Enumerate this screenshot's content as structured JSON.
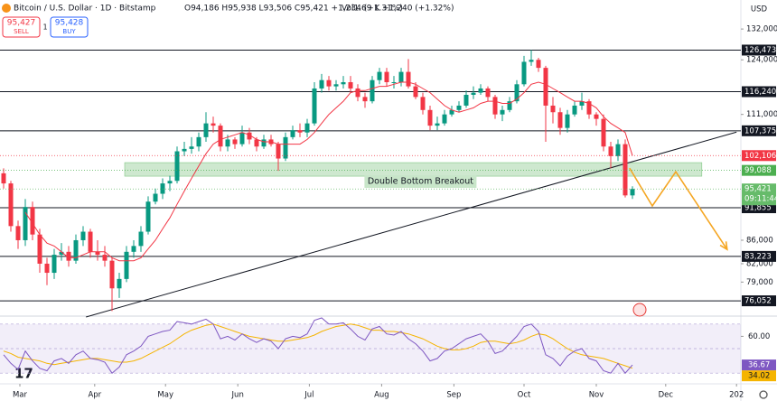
{
  "header": {
    "symbol": "Bitcoin / U.S. Dollar · 1D · Bitstamp",
    "ohlc": "O94,186 H95,938 L93,506 C95,421 +1,234 (+1.31%)",
    "volume": "Vol1.69 K +1,240 (+1.32%)",
    "sell_price": "95,427",
    "sell_label": "SELL",
    "spread": "1",
    "buy_price": "95,428",
    "buy_label": "BUY"
  },
  "chart_data": {
    "type": "candlestick",
    "currency": "USD",
    "log_scale": true,
    "colors": {
      "up": "#089981",
      "down": "#f23645",
      "ma": "#f23645",
      "rsi": "#7e57c2",
      "rsi_ma": "#f5b400",
      "projection": "#f5a623",
      "zone": "#a5d6a7"
    },
    "open": [
      98500,
      96500,
      88500,
      86000,
      92000,
      87000,
      82000,
      80500,
      83500,
      84000,
      82500,
      86000,
      87500,
      84000,
      83500,
      82500,
      78000,
      79500,
      84000,
      85000,
      87500,
      93000,
      94500,
      96500,
      97000,
      103000,
      103500,
      104000,
      106000,
      109000,
      108500,
      104000,
      105500,
      104500,
      107000,
      105500,
      104000,
      105500,
      104500,
      101500,
      106000,
      107500,
      107000,
      109000,
      117000,
      119000,
      117500,
      118000,
      118500,
      117000,
      115000,
      114000,
      119000,
      121000,
      118500,
      118500,
      121000,
      117500,
      115000,
      112000,
      108500,
      109000,
      111000,
      112000,
      113000,
      115500,
      116000,
      117000,
      115000,
      111000,
      112000,
      114000,
      118000,
      123500,
      124000,
      122000,
      113000,
      111500,
      108000,
      111000,
      113000,
      114000,
      111000,
      110000,
      104000,
      102000,
      104500,
      94186
    ],
    "high": [
      99500,
      97000,
      89500,
      93500,
      93000,
      88000,
      83000,
      84500,
      85500,
      85000,
      87000,
      88500,
      88000,
      86000,
      85000,
      83000,
      80500,
      85000,
      86000,
      88500,
      94000,
      95500,
      97500,
      98000,
      104000,
      105000,
      106000,
      107000,
      111500,
      110500,
      109000,
      106500,
      106000,
      108500,
      108000,
      106000,
      106500,
      106500,
      105000,
      107000,
      108500,
      109000,
      110000,
      118500,
      120500,
      120000,
      119000,
      120000,
      120000,
      118000,
      116000,
      120000,
      122000,
      122000,
      120000,
      122000,
      124200,
      118500,
      116000,
      113000,
      110500,
      112000,
      113000,
      114000,
      116500,
      117500,
      118000,
      117500,
      115500,
      113000,
      115000,
      119000,
      125000,
      126500,
      124500,
      122500,
      115000,
      112500,
      112000,
      114000,
      116000,
      114500,
      111500,
      111000,
      105000,
      105500,
      105500,
      95938
    ],
    "low": [
      95500,
      87500,
      84500,
      85000,
      86000,
      80500,
      78500,
      79500,
      82500,
      81500,
      82000,
      85000,
      83000,
      82500,
      81500,
      74500,
      76500,
      79000,
      83000,
      84000,
      87000,
      92500,
      93500,
      95000,
      96500,
      102000,
      102500,
      103000,
      105000,
      107000,
      103000,
      103000,
      103500,
      104000,
      104500,
      103000,
      103500,
      104000,
      99000,
      101000,
      105500,
      106000,
      106000,
      108500,
      116000,
      116500,
      116500,
      117000,
      116000,
      114000,
      112500,
      113500,
      118000,
      117500,
      117000,
      117500,
      117000,
      114500,
      111000,
      107500,
      107500,
      108500,
      110500,
      111500,
      112500,
      114500,
      115500,
      114000,
      110000,
      109500,
      111500,
      113500,
      117500,
      122500,
      121000,
      105000,
      109000,
      106500,
      107000,
      110500,
      112000,
      110000,
      108500,
      103000,
      99500,
      101000,
      93800,
      93506
    ],
    "close": [
      96500,
      88500,
      86000,
      92000,
      87000,
      82000,
      80500,
      83500,
      84000,
      82500,
      86000,
      87500,
      84000,
      83500,
      82500,
      78000,
      79500,
      84000,
      85000,
      87500,
      93000,
      94500,
      96500,
      97000,
      103000,
      103500,
      104000,
      106000,
      109000,
      108500,
      104000,
      105500,
      104500,
      107000,
      105500,
      104000,
      105500,
      104500,
      101500,
      106000,
      107500,
      107000,
      109000,
      117000,
      119000,
      117500,
      118000,
      118500,
      117000,
      115000,
      114000,
      119000,
      121000,
      118500,
      118500,
      121000,
      117500,
      115000,
      112000,
      108500,
      109000,
      111000,
      112000,
      113000,
      115500,
      116000,
      117000,
      115000,
      111000,
      112000,
      114000,
      118000,
      123500,
      124000,
      122000,
      113000,
      111500,
      108000,
      111000,
      113000,
      114000,
      111000,
      110000,
      104000,
      102000,
      104500,
      94186,
      95421
    ],
    "moving_average": [
      null,
      null,
      null,
      91000,
      89000,
      87000,
      85500,
      85000,
      84000,
      83000,
      83000,
      83500,
      84000,
      84000,
      84000,
      83000,
      82500,
      82500,
      82500,
      83000,
      84500,
      86000,
      88000,
      90000,
      92500,
      95000,
      97500,
      100000,
      102500,
      104500,
      105500,
      106000,
      106500,
      107000,
      106500,
      105500,
      105000,
      105000,
      104500,
      104500,
      104500,
      104500,
      105500,
      107000,
      109000,
      111000,
      112500,
      114000,
      116000,
      116500,
      116500,
      117000,
      117500,
      117500,
      118000,
      118500,
      118500,
      118000,
      117000,
      116000,
      114500,
      113000,
      112000,
      111500,
      112000,
      112500,
      113500,
      114000,
      114000,
      113500,
      113500,
      114500,
      116000,
      118000,
      118500,
      118000,
      117000,
      116000,
      115000,
      114000,
      114000,
      113500,
      112500,
      110500,
      109000,
      108000,
      107000,
      102106
    ],
    "xlim": [
      -0.5,
      102
    ],
    "xticks": [
      {
        "value": 2.25,
        "label": "Mar"
      },
      {
        "value": 12.6,
        "label": "Apr"
      },
      {
        "value": 22.4,
        "label": "May"
      },
      {
        "value": 32.4,
        "label": "Jun"
      },
      {
        "value": 42.3,
        "label": "Jul"
      },
      {
        "value": 52.3,
        "label": "Aug"
      },
      {
        "value": 62.3,
        "label": "Sep"
      },
      {
        "value": 72,
        "label": "Oct"
      },
      {
        "value": 82,
        "label": "Nov"
      },
      {
        "value": 91.6,
        "label": "Dec"
      },
      {
        "value": 101.4,
        "label": "202"
      }
    ],
    "ylim": [
      74000,
      140000
    ],
    "yticks": [
      {
        "value": 132000,
        "label": "132,000"
      },
      {
        "value": 124000,
        "label": "124,000"
      },
      {
        "value": 111000,
        "label": "111,000"
      },
      {
        "value": 86000,
        "label": "86,000"
      },
      {
        "value": 82000,
        "label": "82,000"
      },
      {
        "value": 79000,
        "label": "79,000"
      }
    ],
    "levels": [
      {
        "value": 126473,
        "label": "126,473"
      },
      {
        "value": 116240,
        "label": "116,240"
      },
      {
        "value": 107375,
        "label": "107,375"
      },
      {
        "value": 91855,
        "label": "91,855"
      },
      {
        "value": 83223,
        "label": "83,223"
      },
      {
        "value": 76052,
        "label": "76,052"
      }
    ],
    "price_labels": [
      {
        "value": 102106,
        "label": "102,106",
        "color": "#f23645"
      },
      {
        "value": 99088,
        "label": "99,088",
        "color": "#4caf50"
      },
      {
        "value": 95421,
        "label": "95,421",
        "color": "#66bb6a"
      }
    ],
    "countdown": "09:11:44",
    "zone": {
      "x": [
        16.75,
        96.6
      ],
      "y": [
        97930,
        100660
      ],
      "label": "Double Bottom Breakout"
    },
    "trendline": {
      "x": [
        11.4,
        101.4
      ],
      "y": [
        73600,
        107100
      ]
    },
    "projection": {
      "x": [
        86.6,
        89.75,
        93,
        100.1
      ],
      "y": [
        99550,
        92200,
        98800,
        84400
      ]
    },
    "rsi": {
      "values": [
        45,
        38,
        33,
        48,
        40,
        34,
        32,
        40,
        42,
        38,
        45,
        48,
        42,
        41,
        39,
        30,
        35,
        45,
        48,
        52,
        60,
        62,
        64,
        65,
        72,
        71,
        70,
        72,
        74,
        70,
        58,
        60,
        57,
        62,
        58,
        55,
        58,
        56,
        50,
        58,
        60,
        59,
        62,
        73,
        75,
        70,
        70,
        71,
        66,
        60,
        57,
        66,
        68,
        62,
        61,
        64,
        58,
        54,
        48,
        40,
        42,
        48,
        50,
        54,
        58,
        60,
        62,
        56,
        46,
        48,
        54,
        60,
        68,
        70,
        64,
        45,
        42,
        36,
        44,
        48,
        50,
        42,
        40,
        32,
        30,
        38,
        30,
        36.67
      ],
      "ma": [
        48,
        46,
        43,
        42,
        41,
        40,
        38,
        37,
        38,
        39,
        40,
        41,
        42,
        42,
        41,
        40,
        39,
        39,
        40,
        42,
        45,
        48,
        51,
        54,
        58,
        62,
        65,
        67,
        69,
        70,
        68,
        66,
        64,
        62,
        60,
        59,
        58,
        57,
        56,
        56,
        57,
        58,
        59,
        61,
        64,
        66,
        68,
        69,
        70,
        69,
        67,
        65,
        65,
        64,
        64,
        63,
        62,
        60,
        58,
        55,
        52,
        50,
        49,
        49,
        50,
        52,
        55,
        56,
        56,
        55,
        54,
        55,
        57,
        60,
        62,
        61,
        58,
        54,
        50,
        47,
        45,
        44,
        43,
        42,
        40,
        38,
        36,
        34.02
      ],
      "ylim": [
        25,
        75
      ],
      "yticks": [
        {
          "value": 60,
          "label": "60.00"
        }
      ],
      "bands": [
        30,
        50,
        70
      ]
    }
  }
}
